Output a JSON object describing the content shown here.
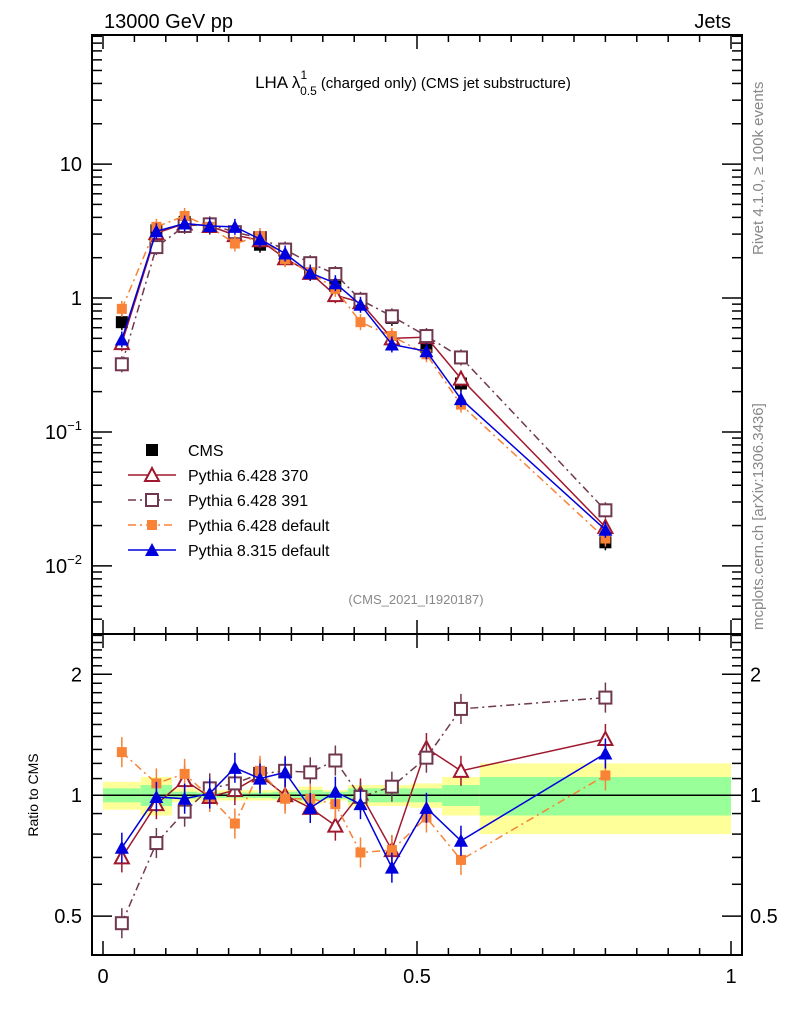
{
  "header": {
    "left": "13000 GeV pp",
    "right": "Jets"
  },
  "side_labels": {
    "rivet": "Rivet 4.1.0, ≥ 100k events",
    "mcplots": "mcplots.cern.ch [arXiv:1306.3436]"
  },
  "chart_data": [
    {
      "type": "line",
      "panel": "main",
      "title": "LHA λ",
      "title_sup": "1",
      "title_sub": "0.5",
      "title_rest": "(charged only) (CMS jet substructure)",
      "watermark": "(CMS_2021_I1920187)",
      "xlabel": "",
      "ylabel": "",
      "yscale": "log",
      "xlim": [
        0,
        1
      ],
      "ylim": [
        0.0031,
        92
      ],
      "yticks": [
        {
          "value": 10,
          "label": "10"
        },
        {
          "value": 1,
          "label": "1"
        },
        {
          "value": 0.1,
          "label": "10",
          "sup": "−1"
        },
        {
          "value": 0.01,
          "label": "10",
          "sup": "−2"
        }
      ],
      "legend_position": "bottom-left",
      "x": [
        0.03,
        0.085,
        0.13,
        0.17,
        0.21,
        0.25,
        0.29,
        0.33,
        0.37,
        0.41,
        0.46,
        0.515,
        0.57,
        0.8
      ],
      "bin_edges": [
        0,
        0.06,
        0.11,
        0.15,
        0.19,
        0.23,
        0.27,
        0.31,
        0.35,
        0.39,
        0.43,
        0.49,
        0.54,
        0.6,
        1.0
      ],
      "series": [
        {
          "name": "CMS",
          "color": "#000000",
          "marker": "filled-square",
          "line": "none",
          "values": [
            0.66,
            3.2,
            3.7,
            3.4,
            2.95,
            2.5,
            2.0,
            1.59,
            1.23,
            0.93,
            0.71,
            0.43,
            0.23,
            0.015
          ]
        },
        {
          "name": "Pythia 6.428 370",
          "color": "#a0182e",
          "marker": "open-triangle",
          "line": "solid",
          "values": [
            0.46,
            3.05,
            3.6,
            3.45,
            2.95,
            2.7,
            1.98,
            1.54,
            1.05,
            0.93,
            0.5,
            0.51,
            0.25,
            0.0195
          ]
        },
        {
          "name": "Pythia 6.428 391",
          "color": "#70384e",
          "marker": "open-square",
          "line": "dashdot",
          "values": [
            0.32,
            2.4,
            3.45,
            3.55,
            3.1,
            2.8,
            2.3,
            1.82,
            1.51,
            0.97,
            0.73,
            0.52,
            0.36,
            0.026
          ]
        },
        {
          "name": "Pythia 6.428 default",
          "color": "#f88236",
          "marker": "filled-square-small",
          "line": "dashdot",
          "values": [
            0.83,
            3.4,
            4.1,
            3.4,
            2.55,
            2.9,
            1.95,
            1.56,
            1.17,
            0.66,
            0.52,
            0.38,
            0.16,
            0.016
          ]
        },
        {
          "name": "Pythia 8.315 default",
          "color": "#0000dd",
          "marker": "filled-triangle",
          "line": "solid",
          "values": [
            0.49,
            3.15,
            3.6,
            3.45,
            3.4,
            2.75,
            2.15,
            1.54,
            1.29,
            0.89,
            0.45,
            0.4,
            0.176,
            0.0186
          ]
        }
      ]
    },
    {
      "type": "line",
      "panel": "ratio",
      "ylabel": "Ratio to CMS",
      "yscale": "log",
      "xlim": [
        0,
        1
      ],
      "ylim": [
        0.4,
        2.52
      ],
      "yticks": [
        {
          "value": 2,
          "label": "2"
        },
        {
          "value": 1,
          "label": "1"
        },
        {
          "value": 0.5,
          "label": "0.5"
        }
      ],
      "xticks": [
        {
          "value": 0,
          "label": "0"
        },
        {
          "value": 0.5,
          "label": "0.5"
        },
        {
          "value": 1,
          "label": "1"
        }
      ],
      "bands": {
        "bin_edges": [
          0,
          0.06,
          0.11,
          0.15,
          0.19,
          0.23,
          0.27,
          0.31,
          0.35,
          0.39,
          0.43,
          0.49,
          0.54,
          0.6,
          1.0
        ],
        "total": [
          0.08,
          0.11,
          0.04,
          0.03,
          0.03,
          0.03,
          0.03,
          0.05,
          0.03,
          0.06,
          0.06,
          0.07,
          0.11,
          0.2
        ],
        "stat": [
          0.04,
          0.06,
          0.02,
          0.015,
          0.015,
          0.015,
          0.02,
          0.03,
          0.02,
          0.04,
          0.04,
          0.04,
          0.06,
          0.11
        ],
        "total_color": "#ffff99",
        "stat_color": "#99ff99"
      },
      "x": [
        0.03,
        0.085,
        0.13,
        0.17,
        0.21,
        0.25,
        0.29,
        0.33,
        0.37,
        0.41,
        0.46,
        0.515,
        0.57,
        0.8
      ],
      "series": [
        {
          "name": "Pythia 6.428 370",
          "color": "#a0182e",
          "values": [
            0.7,
            0.95,
            1.09,
            0.99,
            1.03,
            1.12,
            1.0,
            0.93,
            0.84,
            1.01,
            0.73,
            1.31,
            1.15,
            1.38
          ]
        },
        {
          "name": "Pythia 6.428 391",
          "color": "#70384e",
          "values": [
            0.48,
            0.76,
            0.91,
            1.04,
            1.07,
            1.13,
            1.15,
            1.14,
            1.22,
            0.99,
            1.05,
            1.24,
            1.64,
            1.75
          ]
        },
        {
          "name": "Pythia 6.428 default",
          "color": "#f88236",
          "values": [
            1.28,
            1.07,
            1.13,
            0.99,
            0.85,
            1.15,
            0.98,
            0.98,
            0.95,
            0.72,
            0.73,
            0.88,
            0.69,
            1.12
          ]
        },
        {
          "name": "Pythia 8.315 default",
          "color": "#0000dd",
          "values": [
            0.74,
            0.99,
            0.98,
            1.01,
            1.17,
            1.1,
            1.14,
            0.93,
            1.02,
            0.95,
            0.66,
            0.93,
            0.77,
            1.27
          ]
        }
      ]
    }
  ]
}
